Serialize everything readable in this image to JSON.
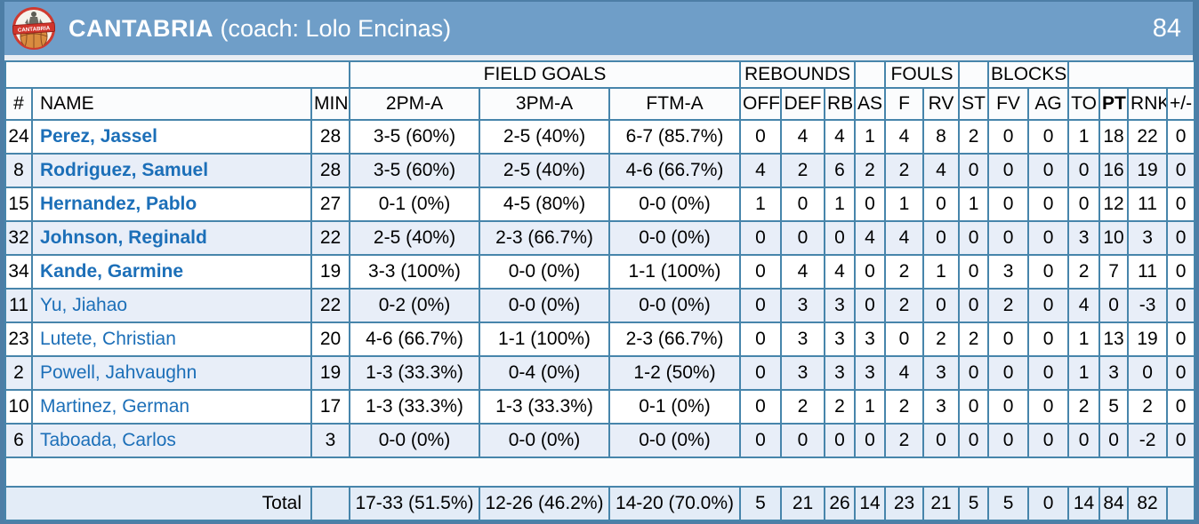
{
  "header": {
    "team": "CANTABRIA",
    "coach": "(coach: Lolo Encinas)",
    "score": "84",
    "logo_text": "CANTABRIA"
  },
  "table": {
    "group_headers": {
      "field_goals": "FIELD GOALS",
      "rebounds": "REBOUNDS",
      "fouls": "FOULS",
      "blocks": "BLOCKS"
    },
    "columns": [
      "#",
      "NAME",
      "MIN",
      "2PM-A",
      "3PM-A",
      "FTM-A",
      "OFF",
      "DEF",
      "RB",
      "AS",
      "F",
      "RV",
      "ST",
      "FV",
      "AG",
      "TO",
      "PT",
      "RNK",
      "+/-"
    ],
    "players": [
      {
        "number": "24",
        "name": "Perez, Jassel",
        "starter": true,
        "min": "28",
        "p2": "3-5 (60%)",
        "p3": "2-5 (40%)",
        "ft": "6-7 (85.7%)",
        "off": "0",
        "def": "4",
        "rb": "4",
        "as": "1",
        "f": "4",
        "rv": "8",
        "st": "2",
        "fv": "0",
        "ag": "0",
        "to": "1",
        "pt": "18",
        "rnk": "22",
        "pm": "0"
      },
      {
        "number": "8",
        "name": "Rodriguez, Samuel",
        "starter": true,
        "min": "28",
        "p2": "3-5 (60%)",
        "p3": "2-5 (40%)",
        "ft": "4-6 (66.7%)",
        "off": "4",
        "def": "2",
        "rb": "6",
        "as": "2",
        "f": "2",
        "rv": "4",
        "st": "0",
        "fv": "0",
        "ag": "0",
        "to": "0",
        "pt": "16",
        "rnk": "19",
        "pm": "0"
      },
      {
        "number": "15",
        "name": "Hernandez, Pablo",
        "starter": true,
        "min": "27",
        "p2": "0-1 (0%)",
        "p3": "4-5 (80%)",
        "ft": "0-0 (0%)",
        "off": "1",
        "def": "0",
        "rb": "1",
        "as": "0",
        "f": "1",
        "rv": "0",
        "st": "1",
        "fv": "0",
        "ag": "0",
        "to": "0",
        "pt": "12",
        "rnk": "11",
        "pm": "0"
      },
      {
        "number": "32",
        "name": "Johnson, Reginald",
        "starter": true,
        "min": "22",
        "p2": "2-5 (40%)",
        "p3": "2-3 (66.7%)",
        "ft": "0-0 (0%)",
        "off": "0",
        "def": "0",
        "rb": "0",
        "as": "4",
        "f": "4",
        "rv": "0",
        "st": "0",
        "fv": "0",
        "ag": "0",
        "to": "3",
        "pt": "10",
        "rnk": "3",
        "pm": "0"
      },
      {
        "number": "34",
        "name": "Kande, Garmine",
        "starter": true,
        "min": "19",
        "p2": "3-3 (100%)",
        "p3": "0-0 (0%)",
        "ft": "1-1 (100%)",
        "off": "0",
        "def": "4",
        "rb": "4",
        "as": "0",
        "f": "2",
        "rv": "1",
        "st": "0",
        "fv": "3",
        "ag": "0",
        "to": "2",
        "pt": "7",
        "rnk": "11",
        "pm": "0"
      },
      {
        "number": "11",
        "name": "Yu, Jiahao",
        "starter": false,
        "min": "22",
        "p2": "0-2 (0%)",
        "p3": "0-0 (0%)",
        "ft": "0-0 (0%)",
        "off": "0",
        "def": "3",
        "rb": "3",
        "as": "0",
        "f": "2",
        "rv": "0",
        "st": "0",
        "fv": "2",
        "ag": "0",
        "to": "4",
        "pt": "0",
        "rnk": "-3",
        "pm": "0"
      },
      {
        "number": "23",
        "name": "Lutete, Christian",
        "starter": false,
        "min": "20",
        "p2": "4-6 (66.7%)",
        "p3": "1-1 (100%)",
        "ft": "2-3 (66.7%)",
        "off": "0",
        "def": "3",
        "rb": "3",
        "as": "3",
        "f": "0",
        "rv": "2",
        "st": "2",
        "fv": "0",
        "ag": "0",
        "to": "1",
        "pt": "13",
        "rnk": "19",
        "pm": "0"
      },
      {
        "number": "2",
        "name": "Powell, Jahvaughn",
        "starter": false,
        "min": "19",
        "p2": "1-3 (33.3%)",
        "p3": "0-4 (0%)",
        "ft": "1-2 (50%)",
        "off": "0",
        "def": "3",
        "rb": "3",
        "as": "3",
        "f": "4",
        "rv": "3",
        "st": "0",
        "fv": "0",
        "ag": "0",
        "to": "1",
        "pt": "3",
        "rnk": "0",
        "pm": "0"
      },
      {
        "number": "10",
        "name": "Martinez, German",
        "starter": false,
        "min": "17",
        "p2": "1-3 (33.3%)",
        "p3": "1-3 (33.3%)",
        "ft": "0-1 (0%)",
        "off": "0",
        "def": "2",
        "rb": "2",
        "as": "1",
        "f": "2",
        "rv": "3",
        "st": "0",
        "fv": "0",
        "ag": "0",
        "to": "2",
        "pt": "5",
        "rnk": "2",
        "pm": "0"
      },
      {
        "number": "6",
        "name": "Taboada, Carlos",
        "starter": false,
        "min": "3",
        "p2": "0-0 (0%)",
        "p3": "0-0 (0%)",
        "ft": "0-0 (0%)",
        "off": "0",
        "def": "0",
        "rb": "0",
        "as": "0",
        "f": "2",
        "rv": "0",
        "st": "0",
        "fv": "0",
        "ag": "0",
        "to": "0",
        "pt": "0",
        "rnk": "-2",
        "pm": "0"
      }
    ],
    "total": {
      "label": "Total",
      "min": "",
      "p2": "17-33 (51.5%)",
      "p3": "12-26 (46.2%)",
      "ft": "14-20 (70.0%)",
      "off": "5",
      "def": "21",
      "rb": "26",
      "as": "14",
      "f": "23",
      "rv": "21",
      "st": "5",
      "fv": "5",
      "ag": "0",
      "to": "14",
      "pt": "84",
      "rnk": "82",
      "pm": ""
    }
  },
  "colors": {
    "header_bar": "#6f9ec8",
    "page_edge": "#4d7ea6",
    "table_border": "#4785ab",
    "alt_row": "#e8eef8",
    "total_row": "#e3ecf7",
    "player_link": "#1c6fb8",
    "logo_red": "#d0342b",
    "logo_ball": "#d98c3f"
  }
}
